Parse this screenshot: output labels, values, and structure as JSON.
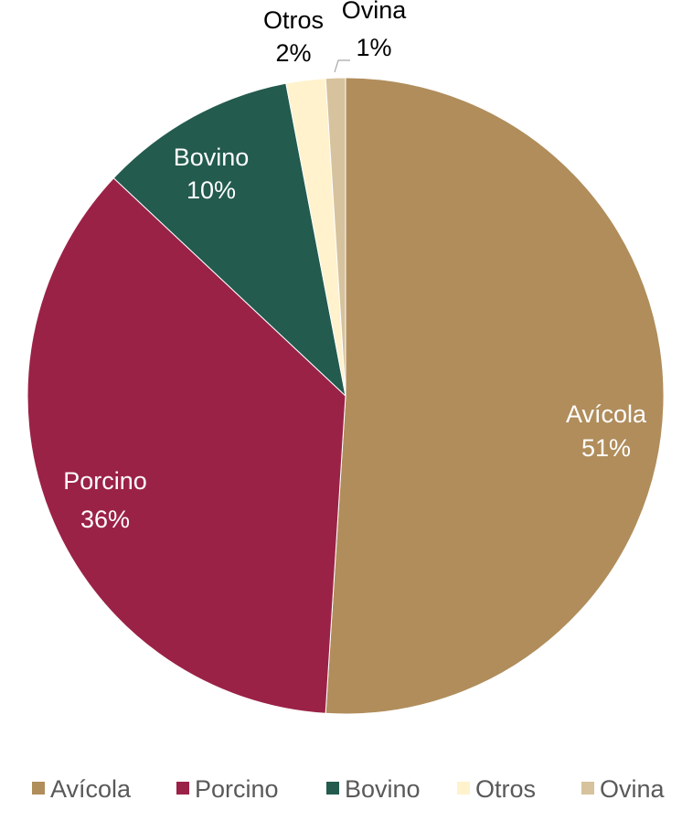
{
  "chart_data": {
    "type": "pie",
    "title": "",
    "categories": [
      "Avícola",
      "Porcino",
      "Bovino",
      "Otros",
      "Ovina"
    ],
    "values": [
      51,
      36,
      10,
      2,
      1
    ],
    "percent_labels": [
      "51%",
      "36%",
      "10%",
      "2%",
      "1%"
    ],
    "colors": [
      "#B08D5B",
      "#9B2247",
      "#235B4E",
      "#FFF2CC",
      "#D6C29C"
    ],
    "start_angle": "12 o'clock",
    "direction": "clockwise",
    "legend_position": "bottom",
    "label_text_colors": [
      "#ffffff",
      "#ffffff",
      "#ffffff",
      "#000000",
      "#000000"
    ]
  }
}
